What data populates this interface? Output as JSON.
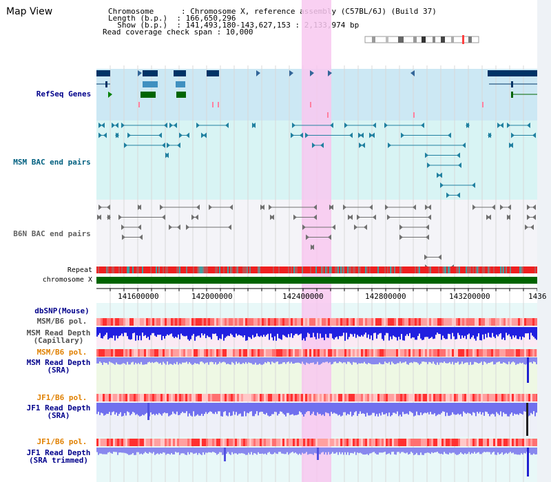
{
  "title": "Map View",
  "info": {
    "chromosome_key": "Chromosome",
    "chromosome_val": ": Chromosome X, reference assembly (C57BL/6J) (Build 37)",
    "length_key": "Length (b.p.)",
    "length_val": ": 166,650,296",
    "show_key": "Show (b.p.)",
    "show_val": ": 141,493,180-143,627,153 : 2,133,974 bp",
    "coverage": "Read coverage check span : 10,000"
  },
  "tracks": {
    "refseq": "RefSeq Genes",
    "msm_bac": "MSM BAC end pairs",
    "b6n_bac": "B6N BAC end pairs",
    "repeat": "Repeat",
    "chromosome": "chromosome X",
    "dbsnp": "dbSNP(Mouse)",
    "msm_b6_pol_1": "MSM/B6 pol.",
    "msm_depth_cap_1": "MSM Read Depth",
    "msm_depth_cap_2": "(Capillary)",
    "msm_b6_pol_2": "MSM/B6 pol.",
    "msm_depth_sra_1": "MSM Read Depth",
    "msm_depth_sra_2": "(SRA)",
    "jf1_pol_1": "JF1/B6 pol.",
    "jf1_depth_sra_1": "JF1 Read Depth",
    "jf1_depth_sra_2": "(SRA)",
    "jf1_pol_2": "JF1/B6 pol.",
    "jf1_depth_trim_1": "JF1 Read Depth",
    "jf1_depth_trim_2": "(SRA trimmed)"
  },
  "axis_ticks": [
    "141600000",
    "142000000",
    "142400000",
    "142800000",
    "143200000",
    "1436"
  ],
  "colors": {
    "refseq_label": "#00008b",
    "msm_label": "#006080",
    "b6n_label": "#606060",
    "pol_label": "#e08000",
    "depth_label": "#00008b",
    "highlight": "#f8c8f0",
    "chromosome_bar": "#006400"
  }
}
